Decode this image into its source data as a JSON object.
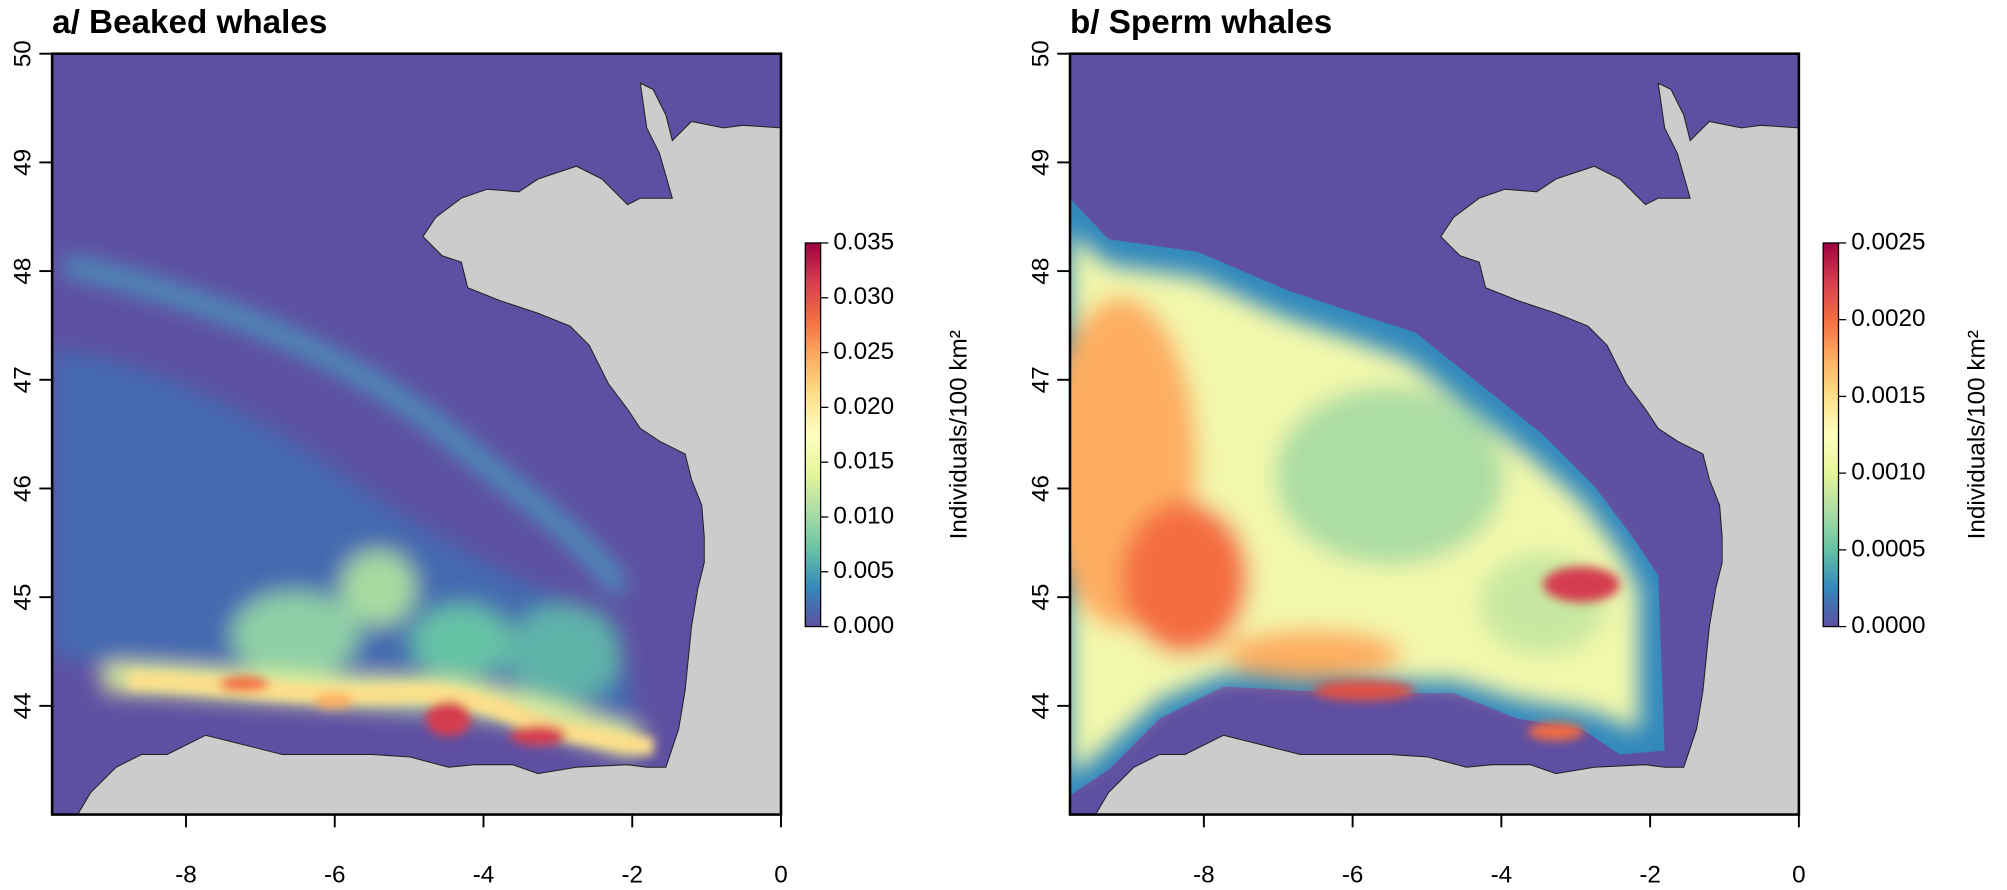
{
  "maps": [
    {
      "title": "a/ Beaked whales",
      "xlim": [
        -9.8,
        0
      ],
      "ylim": [
        43,
        50
      ],
      "xticks": [
        -8,
        -6,
        -4,
        -2,
        0
      ],
      "yticks": [
        44,
        45,
        46,
        47,
        48,
        49,
        50
      ],
      "colorbar": {
        "label": "Individuals/100 km²",
        "lim": [
          0,
          0.035
        ],
        "ticks": [
          {
            "value": 0,
            "label": "0.000"
          },
          {
            "value": 0.005,
            "label": "0.005"
          },
          {
            "value": 0.01,
            "label": "0.010"
          },
          {
            "value": 0.015,
            "label": "0.015"
          },
          {
            "value": 0.02,
            "label": "0.020"
          },
          {
            "value": 0.025,
            "label": "0.025"
          },
          {
            "value": 0.03,
            "label": "0.030"
          },
          {
            "value": 0.035,
            "label": "0.035"
          }
        ]
      }
    },
    {
      "title": "b/ Sperm whales",
      "xlim": [
        -9.8,
        0
      ],
      "ylim": [
        43,
        50
      ],
      "xticks": [
        -8,
        -6,
        -4,
        -2,
        0
      ],
      "yticks": [
        44,
        45,
        46,
        47,
        48,
        49,
        50
      ],
      "colorbar": {
        "label": "Individuals/100 km²",
        "lim": [
          0,
          0.0025
        ],
        "ticks": [
          {
            "value": 0,
            "label": "0.0000"
          },
          {
            "value": 0.0005,
            "label": "0.0005"
          },
          {
            "value": 0.001,
            "label": "0.0010"
          },
          {
            "value": 0.0015,
            "label": "0.0015"
          },
          {
            "value": 0.002,
            "label": "0.0020"
          },
          {
            "value": 0.0025,
            "label": "0.0025"
          }
        ]
      }
    }
  ]
}
